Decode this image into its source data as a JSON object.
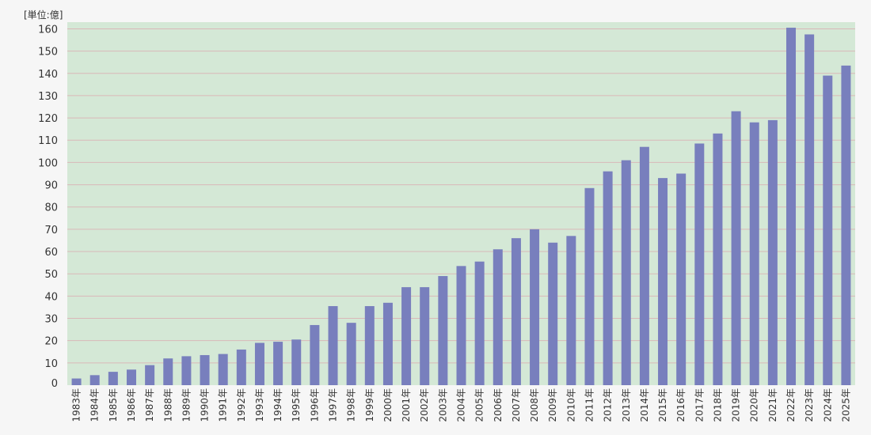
{
  "chart_data": {
    "type": "bar",
    "unit_label": "[単位:億]",
    "title": "",
    "xlabel": "",
    "ylabel": "",
    "ylim": [
      0,
      163
    ],
    "yticks": [
      0,
      10,
      20,
      30,
      40,
      50,
      60,
      70,
      80,
      90,
      100,
      110,
      120,
      130,
      140,
      150,
      160
    ],
    "grid": true,
    "legend": "none",
    "colors": {
      "bar": "#787fbd",
      "plot_bg": "#d4e8d6",
      "grid": "#d9b8b8",
      "page_bg": "#f6f6f6"
    },
    "categories": [
      "1983年",
      "1984年",
      "1985年",
      "1986年",
      "1987年",
      "1988年",
      "1989年",
      "1990年",
      "1991年",
      "1992年",
      "1993年",
      "1994年",
      "1995年",
      "1996年",
      "1997年",
      "1998年",
      "1999年",
      "2000年",
      "2001年",
      "2002年",
      "2003年",
      "2004年",
      "2005年",
      "2006年",
      "2007年",
      "2008年",
      "2009年",
      "2010年",
      "2011年",
      "2012年",
      "2013年",
      "2014年",
      "2015年",
      "2016年",
      "2017年",
      "2018年",
      "2019年",
      "2020年",
      "2021年",
      "2022年",
      "2023年",
      "2024年",
      "2025年"
    ],
    "values": [
      3,
      4.5,
      6,
      7,
      9,
      12,
      13,
      13.5,
      14,
      16,
      19,
      19.5,
      20.5,
      27,
      35.5,
      28,
      35.5,
      37,
      44,
      44,
      49,
      53.5,
      55.5,
      61,
      66,
      70,
      64,
      67,
      88.5,
      96,
      101,
      107,
      93,
      95,
      108.5,
      113,
      123,
      118,
      119,
      160.5,
      157.5,
      139,
      143.5
    ]
  }
}
